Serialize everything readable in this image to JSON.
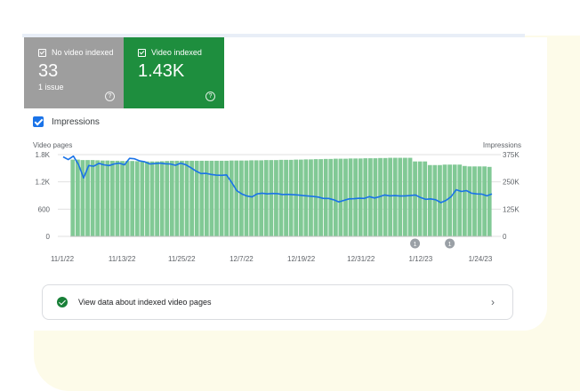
{
  "tiles": [
    {
      "label": "No video indexed",
      "value": "33",
      "sub": "1 issue",
      "color": "#9e9e9e"
    },
    {
      "label": "Video indexed",
      "value": "1.43K",
      "sub": "",
      "color": "#1e8e3e"
    }
  ],
  "impressions_toggle": {
    "label": "Impressions",
    "checked": true
  },
  "icons": {
    "help": "help-circle-icon",
    "check": "check-circle-icon",
    "chevron": "chevron-right-icon"
  },
  "chart_data": {
    "type": "bar",
    "left_axis_title": "Video pages",
    "right_axis_title": "Impressions",
    "left_ticks": [
      "1.8K",
      "1.2K",
      "600",
      "0"
    ],
    "right_ticks": [
      "375K",
      "250K",
      "125K",
      "0"
    ],
    "x_labels": [
      "11/1/22",
      "11/13/22",
      "11/25/22",
      "12/7/22",
      "12/19/22",
      "12/31/22",
      "1/12/23",
      "1/24/23"
    ],
    "ylim_left": [
      0,
      1800
    ],
    "ylim_right": [
      0,
      375000
    ],
    "bar_color": "#81c995",
    "line_color": "#1a73e8",
    "series": [
      {
        "name": "Video pages",
        "axis": "left",
        "values": [
          1690,
          1690,
          1680,
          1680,
          1680,
          1675,
          1670,
          1670,
          1665,
          1665,
          1660,
          1660,
          1660,
          1655,
          1655,
          1650,
          1650,
          1650,
          1655,
          1660,
          1665,
          1665,
          1665,
          1665,
          1665,
          1665,
          1665,
          1665,
          1665,
          1665,
          1665,
          1665,
          1670,
          1670,
          1670,
          1670,
          1675,
          1675,
          1675,
          1680,
          1680,
          1680,
          1685,
          1685,
          1685,
          1690,
          1690,
          1695,
          1695,
          1700,
          1700,
          1705,
          1705,
          1710,
          1710,
          1710,
          1715,
          1715,
          1715,
          1720,
          1720,
          1720,
          1725,
          1725,
          1730,
          1730,
          1730,
          1730,
          1730,
          1650,
          1650,
          1650,
          1570,
          1570,
          1570,
          1580,
          1580,
          1580,
          1580,
          1550,
          1540,
          1540,
          1540,
          1540,
          1530
        ]
      },
      {
        "name": "Impressions",
        "axis": "right",
        "values": [
          365000,
          352000,
          368000,
          330000,
          268000,
          325000,
          322000,
          335000,
          328000,
          325000,
          332000,
          336000,
          328000,
          358000,
          356000,
          346000,
          342000,
          332000,
          334000,
          336000,
          333000,
          332000,
          326000,
          336000,
          329000,
          315000,
          300000,
          288000,
          289000,
          284000,
          281000,
          280000,
          282000,
          248000,
          210000,
          195000,
          185000,
          181000,
          195000,
          198000,
          195000,
          197000,
          196000,
          192000,
          193000,
          191000,
          190000,
          187000,
          185000,
          183000,
          180000,
          174000,
          174000,
          168000,
          158000,
          165000,
          172000,
          173000,
          175000,
          174000,
          182000,
          176000,
          182000,
          190000,
          186000,
          187000,
          185000,
          186000,
          187000,
          190000,
          178000,
          170000,
          172000,
          168000,
          155000,
          165000,
          182000,
          214000,
          206000,
          210000,
          198000,
          195000,
          194000,
          186000,
          195000
        ]
      }
    ],
    "markers": [
      {
        "label": "1",
        "index": 69
      },
      {
        "label": "1",
        "index": 76
      }
    ]
  },
  "card": {
    "label": "View data about indexed video pages"
  }
}
